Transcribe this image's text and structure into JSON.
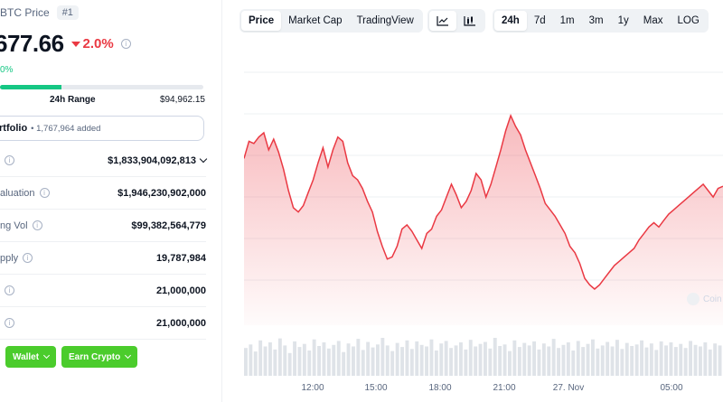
{
  "coin": {
    "symbol_label": "BTC Price",
    "rank": "#1"
  },
  "price": {
    "value": "677.66",
    "change": "2.0%",
    "btc_change": "0%"
  },
  "range": {
    "label": "24h Range",
    "high": "$94,962.15",
    "fill_fraction": 0.3
  },
  "portfolio": {
    "label": "rtfolio",
    "added": "• 1,767,964 added"
  },
  "stats": [
    {
      "label": "",
      "value": "$1,833,904,092,813",
      "has_chevron": true
    },
    {
      "label": "aluation",
      "value": "$1,946,230,902,000"
    },
    {
      "label": "ng Vol",
      "value": "$99,382,564,779"
    },
    {
      "label": "pply",
      "value": "19,787,984"
    },
    {
      "label": "",
      "value": "21,000,000"
    },
    {
      "label": "",
      "value": "21,000,000"
    }
  ],
  "buttons": {
    "wallet": "Wallet",
    "earn": "Earn Crypto"
  },
  "toolbar": {
    "views": [
      "Price",
      "Market Cap",
      "TradingView"
    ],
    "ranges": [
      "24h",
      "7d",
      "1m",
      "3m",
      "1y",
      "Max",
      "LOG"
    ],
    "active_view": "Price",
    "active_range": "24h"
  },
  "watermark": "Coin",
  "colors": {
    "down": "#ea3943",
    "up": "#16c784",
    "button_green": "#4bcc2c"
  },
  "chart_data": {
    "type": "area",
    "x_ticks": [
      "12:00",
      "15:00",
      "18:00",
      "21:00",
      "27. Nov",
      "05:00"
    ],
    "values": [
      62,
      70,
      69,
      72,
      74,
      66,
      71,
      65,
      57,
      47,
      39,
      37,
      40,
      46,
      52,
      60,
      67,
      58,
      66,
      72,
      70,
      60,
      54,
      52,
      48,
      42,
      37,
      28,
      21,
      15,
      16,
      21,
      29,
      31,
      28,
      24,
      20,
      27,
      29,
      35,
      38,
      44,
      50,
      45,
      39,
      42,
      47,
      55,
      52,
      44,
      50,
      58,
      66,
      75,
      82,
      77,
      73,
      66,
      60,
      54,
      48,
      41,
      38,
      35,
      31,
      27,
      21,
      18,
      13,
      6,
      3,
      1,
      3,
      6,
      9,
      12,
      14,
      16,
      18,
      20,
      24,
      27,
      30,
      32,
      30,
      33,
      36,
      38,
      40,
      42,
      44,
      46,
      48,
      50,
      47,
      44,
      48,
      49
    ],
    "volume": [
      55,
      62,
      48,
      70,
      58,
      66,
      52,
      74,
      60,
      45,
      68,
      57,
      63,
      50,
      72,
      59,
      66,
      54,
      61,
      69,
      47,
      64,
      58,
      73,
      51,
      67,
      56,
      62,
      75,
      60,
      49,
      65,
      57,
      70,
      53,
      68,
      61,
      58,
      72,
      50,
      64,
      69,
      55,
      60,
      66,
      52,
      71,
      58,
      63,
      67,
      54,
      75,
      59,
      62,
      49,
      70,
      57,
      65,
      60,
      68,
      52,
      64,
      58,
      73,
      55,
      61,
      66,
      50,
      69,
      57,
      63,
      72,
      54,
      60,
      67,
      58,
      71,
      53,
      65,
      59,
      62,
      70,
      56,
      64,
      51,
      68,
      60,
      66,
      57,
      63,
      55,
      69,
      61,
      58,
      66,
      52,
      64,
      60
    ]
  }
}
